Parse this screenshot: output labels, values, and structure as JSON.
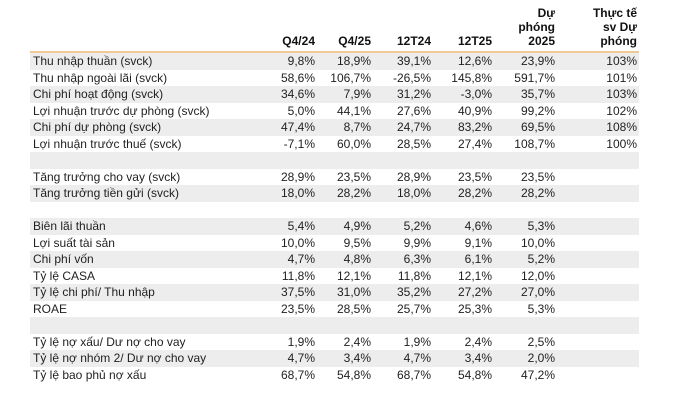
{
  "style": {
    "accent_line_color": "#f0c896",
    "alt_row_color": "#ededed",
    "text_color": "#1f1f1f"
  },
  "chart_data": {
    "type": "table",
    "title": "",
    "columns": [
      "",
      "Q4/24",
      "Q4/25",
      "12T24",
      "12T25",
      "Dự\nphóng\n2025",
      "Thực tế\nsv Dự\nphóng"
    ],
    "rows": [
      {
        "label": "Thu nhập thuần (svck)",
        "values": [
          "9,8%",
          "18,9%",
          "39,1%",
          "12,6%",
          "23,9%",
          "103%"
        ]
      },
      {
        "label": "Thu nhập ngoài lãi (svck)",
        "values": [
          "58,6%",
          "106,7%",
          "-26,5%",
          "145,8%",
          "591,7%",
          "101%"
        ]
      },
      {
        "label": "Chi phí hoạt động (svck)",
        "values": [
          "34,6%",
          "7,9%",
          "31,2%",
          "-3,0%",
          "35,7%",
          "103%"
        ]
      },
      {
        "label": "Lợi nhuận trước dự phòng (svck)",
        "values": [
          "5,0%",
          "44,1%",
          "27,6%",
          "40,9%",
          "99,2%",
          "102%"
        ]
      },
      {
        "label": "Chi phí dự phòng (svck)",
        "values": [
          "47,4%",
          "8,7%",
          "24,7%",
          "83,2%",
          "69,5%",
          "108%"
        ]
      },
      {
        "label": "Lợi nhuận trước thuế (svck)",
        "values": [
          "-7,1%",
          "60,0%",
          "28,5%",
          "27,4%",
          "108,7%",
          "100%"
        ]
      },
      {
        "label": "",
        "values": [
          "",
          "",
          "",
          "",
          "",
          ""
        ]
      },
      {
        "label": "Tăng trưởng cho vay (svck)",
        "values": [
          "28,9%",
          "23,5%",
          "28,9%",
          "23,5%",
          "23,5%",
          ""
        ]
      },
      {
        "label": "Tăng trưởng tiền gửi (svck)",
        "values": [
          "18,0%",
          "28,2%",
          "18,0%",
          "28,2%",
          "28,2%",
          ""
        ]
      },
      {
        "label": "",
        "values": [
          "",
          "",
          "",
          "",
          "",
          ""
        ]
      },
      {
        "label": "Biên lãi thuần",
        "values": [
          "5,4%",
          "4,9%",
          "5,2%",
          "4,6%",
          "5,3%",
          ""
        ]
      },
      {
        "label": "Lợi suất tài sản",
        "values": [
          "10,0%",
          "9,5%",
          "9,9%",
          "9,1%",
          "10,0%",
          ""
        ]
      },
      {
        "label": "Chi phí vốn",
        "values": [
          "4,7%",
          "4,8%",
          "6,3%",
          "6,1%",
          "5,2%",
          ""
        ]
      },
      {
        "label": "Tỷ lệ CASA",
        "values": [
          "11,8%",
          "12,1%",
          "11,8%",
          "12,1%",
          "12,0%",
          ""
        ]
      },
      {
        "label": "Tỷ lệ chi phí/ Thu nhập",
        "values": [
          "37,5%",
          "31,0%",
          "35,2%",
          "27,2%",
          "27,0%",
          ""
        ]
      },
      {
        "label": "ROAE",
        "values": [
          "23,5%",
          "28,5%",
          "25,7%",
          "25,3%",
          "5,3%",
          ""
        ]
      },
      {
        "label": "",
        "values": [
          "",
          "",
          "",
          "",
          "",
          ""
        ]
      },
      {
        "label": "Tỷ lệ nợ xấu/ Dư nợ cho vay",
        "values": [
          "1,9%",
          "2,4%",
          "1,9%",
          "2,4%",
          "2,5%",
          ""
        ]
      },
      {
        "label": "Tỷ lệ nợ nhóm 2/ Dư nợ cho vay",
        "values": [
          "4,7%",
          "3,4%",
          "4,7%",
          "3,4%",
          "2,0%",
          ""
        ]
      },
      {
        "label": "Tỷ lệ bao phủ nợ xấu",
        "values": [
          "68,7%",
          "54,8%",
          "68,7%",
          "54,8%",
          "47,2%",
          ""
        ]
      }
    ]
  }
}
